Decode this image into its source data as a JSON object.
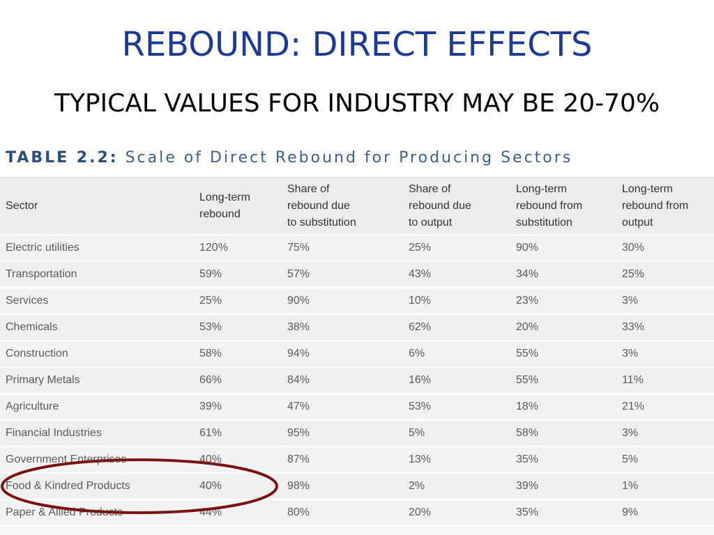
{
  "slide": {
    "title": "REBOUND: DIRECT EFFECTS",
    "subtitle": "TYPICAL VALUES FOR INDUSTRY MAY BE 20-70%"
  },
  "table": {
    "caption_label": "TABLE 2.2:",
    "caption_text": "Scale of Direct Rebound for Producing Sectors",
    "headers": [
      "Sector",
      "Long-term\nrebound",
      "Share of\nrebound due\nto substitution",
      "Share of\nrebound due\nto output",
      "Long-term\nrebound from\nsubstitution",
      "Long-term\nrebound from\noutput"
    ],
    "rows": [
      [
        "Electric utilities",
        "120%",
        "75%",
        "25%",
        "90%",
        "30%"
      ],
      [
        "Transportation",
        "59%",
        "57%",
        "43%",
        "34%",
        "25%"
      ],
      [
        "Services",
        "25%",
        "90%",
        "10%",
        "23%",
        "3%"
      ],
      [
        "Chemicals",
        "53%",
        "38%",
        "62%",
        "20%",
        "33%"
      ],
      [
        "Construction",
        "58%",
        "94%",
        "6%",
        "55%",
        "3%"
      ],
      [
        "Primary Metals",
        "66%",
        "84%",
        "16%",
        "55%",
        "11%"
      ],
      [
        "Agriculture",
        "39%",
        "47%",
        "53%",
        "18%",
        "21%"
      ],
      [
        "Financial Industries",
        "61%",
        "95%",
        "5%",
        "58%",
        "3%"
      ],
      [
        "Government Enterprises",
        "40%",
        "87%",
        "13%",
        "35%",
        "5%"
      ],
      [
        "Food & Kindred Products",
        "40%",
        "98%",
        "2%",
        "39%",
        "1%"
      ],
      [
        "Paper & Allied Products",
        "44%",
        "80%",
        "20%",
        "35%",
        "9%"
      ]
    ]
  },
  "annotation": {
    "circled_row": "Food & Kindred Products",
    "ellipse_color": "#7a1414"
  }
}
